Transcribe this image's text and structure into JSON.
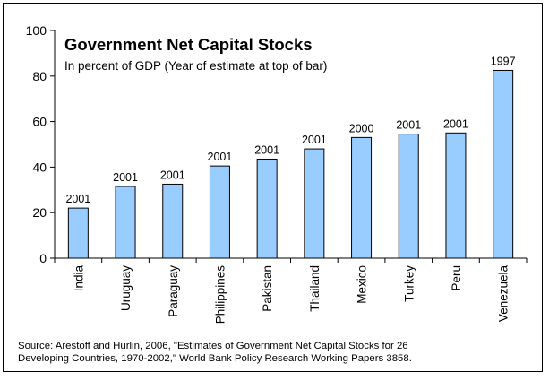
{
  "chart_data": {
    "type": "bar",
    "title": "Government Net Capital Stocks",
    "subtitle": "In percent of GDP (Year of estimate at top of bar)",
    "categories": [
      "India",
      "Uruguay",
      "Paraguay",
      "Philippines",
      "Pakistan",
      "Thailand",
      "Mexico",
      "Turkey",
      "Peru",
      "Venezuela"
    ],
    "values": [
      22,
      31.5,
      32.5,
      40.5,
      43.5,
      48,
      53,
      54.5,
      55,
      82.5
    ],
    "bar_labels": [
      "2001",
      "2001",
      "2001",
      "2001",
      "2001",
      "2001",
      "2000",
      "2001",
      "2001",
      "1997"
    ],
    "ylim": [
      0,
      100
    ],
    "yticks": [
      0,
      20,
      40,
      60,
      80,
      100
    ],
    "xlabel": "",
    "ylabel": "",
    "grid": false,
    "bar_color": "#99CCFF",
    "bar_edge_color": "#000000"
  },
  "source": {
    "line1": "Source: Arestoff and Hurlin, 2006, \"Estimates of Government Net Capital Stocks for 26",
    "line2": "Developing Countries, 1970-2002,\" World Bank Policy Research Working Papers 3858."
  }
}
